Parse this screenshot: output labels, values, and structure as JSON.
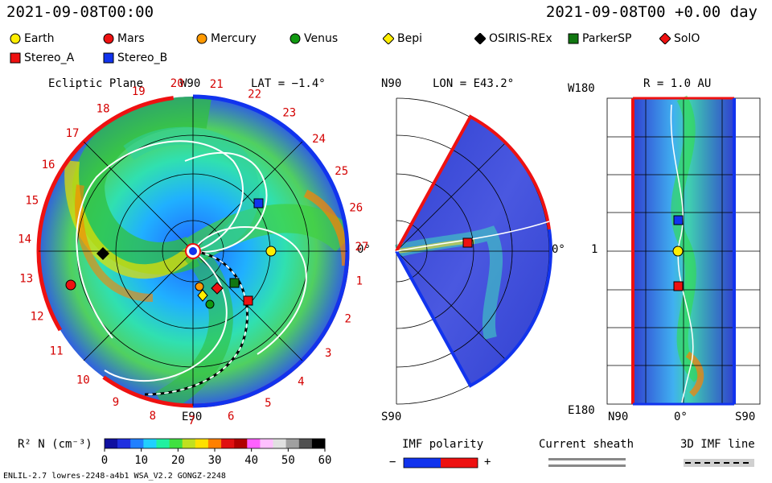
{
  "header": {
    "datetime_left": "2021-09-08T00:00",
    "datetime_right": "2021-09-08T00 +0.00 day"
  },
  "legend": {
    "items": [
      {
        "id": "earth",
        "label": "Earth",
        "color": "#ffee00",
        "shape": "circle"
      },
      {
        "id": "mars",
        "label": "Mars",
        "color": "#ee1111",
        "shape": "circle"
      },
      {
        "id": "mercury",
        "label": "Mercury",
        "color": "#ff9900",
        "shape": "circle"
      },
      {
        "id": "venus",
        "label": "Venus",
        "color": "#119911",
        "shape": "circle"
      },
      {
        "id": "bepi",
        "label": "Bepi",
        "color": "#ffee00",
        "shape": "diamond"
      },
      {
        "id": "osiris",
        "label": "OSIRIS-REx",
        "color": "#000000",
        "shape": "diamond"
      },
      {
        "id": "parker",
        "label": "ParkerSP",
        "color": "#117711",
        "shape": "square"
      },
      {
        "id": "solo",
        "label": "SolO",
        "color": "#ee1111",
        "shape": "diamond"
      },
      {
        "id": "stereo_a",
        "label": "Stereo_A",
        "color": "#ee1111",
        "shape": "square"
      },
      {
        "id": "stereo_b",
        "label": "Stereo_B",
        "color": "#1133ee",
        "shape": "square"
      }
    ]
  },
  "panel_ecliptic": {
    "title": "Ecliptic Plane",
    "lat_label": "LAT = −1.4°",
    "top_label": "W90",
    "bottom_label": "E90",
    "right_label": "0°",
    "carrington": [
      "1",
      "2",
      "3",
      "4",
      "5",
      "6",
      "7",
      "8",
      "9",
      "10",
      "11",
      "12",
      "13",
      "14",
      "15",
      "16",
      "17",
      "18",
      "19",
      "20",
      "21",
      "22",
      "23",
      "24",
      "25",
      "26",
      "27"
    ]
  },
  "panel_meridional": {
    "lon_label": "LON = E43.2°",
    "top_label": "N90",
    "bottom_label": "S90",
    "right_label": "0°"
  },
  "panel_radial": {
    "r_label": "R = 1.0 AU",
    "top_left": "W180",
    "mid_left": "1",
    "bottom_left": "E180",
    "bottom_labels": [
      "N90",
      "0°",
      "S90"
    ]
  },
  "colorbar": {
    "label": "R² N (cm⁻³)",
    "ticks": [
      "0",
      "10",
      "20",
      "30",
      "40",
      "50",
      "60"
    ],
    "stops": [
      "#1010a0",
      "#2030e0",
      "#2080ff",
      "#20d0ff",
      "#20f0a0",
      "#40e040",
      "#c0e020",
      "#ffe000",
      "#ff8000",
      "#e01010",
      "#b00000",
      "#ff60ff",
      "#ffc0ff",
      "#e0e0e0",
      "#a0a0a0",
      "#505050",
      "#000000"
    ]
  },
  "imf": {
    "label": "IMF polarity",
    "minus": "−",
    "plus": "+",
    "sheath_label": "Current sheath",
    "imf3d_label": "3D IMF line"
  },
  "footer": {
    "left": "ENLIL-2.7 lowres-2248-a4b1 WSA_V2.2 GONGZ-2248"
  }
}
